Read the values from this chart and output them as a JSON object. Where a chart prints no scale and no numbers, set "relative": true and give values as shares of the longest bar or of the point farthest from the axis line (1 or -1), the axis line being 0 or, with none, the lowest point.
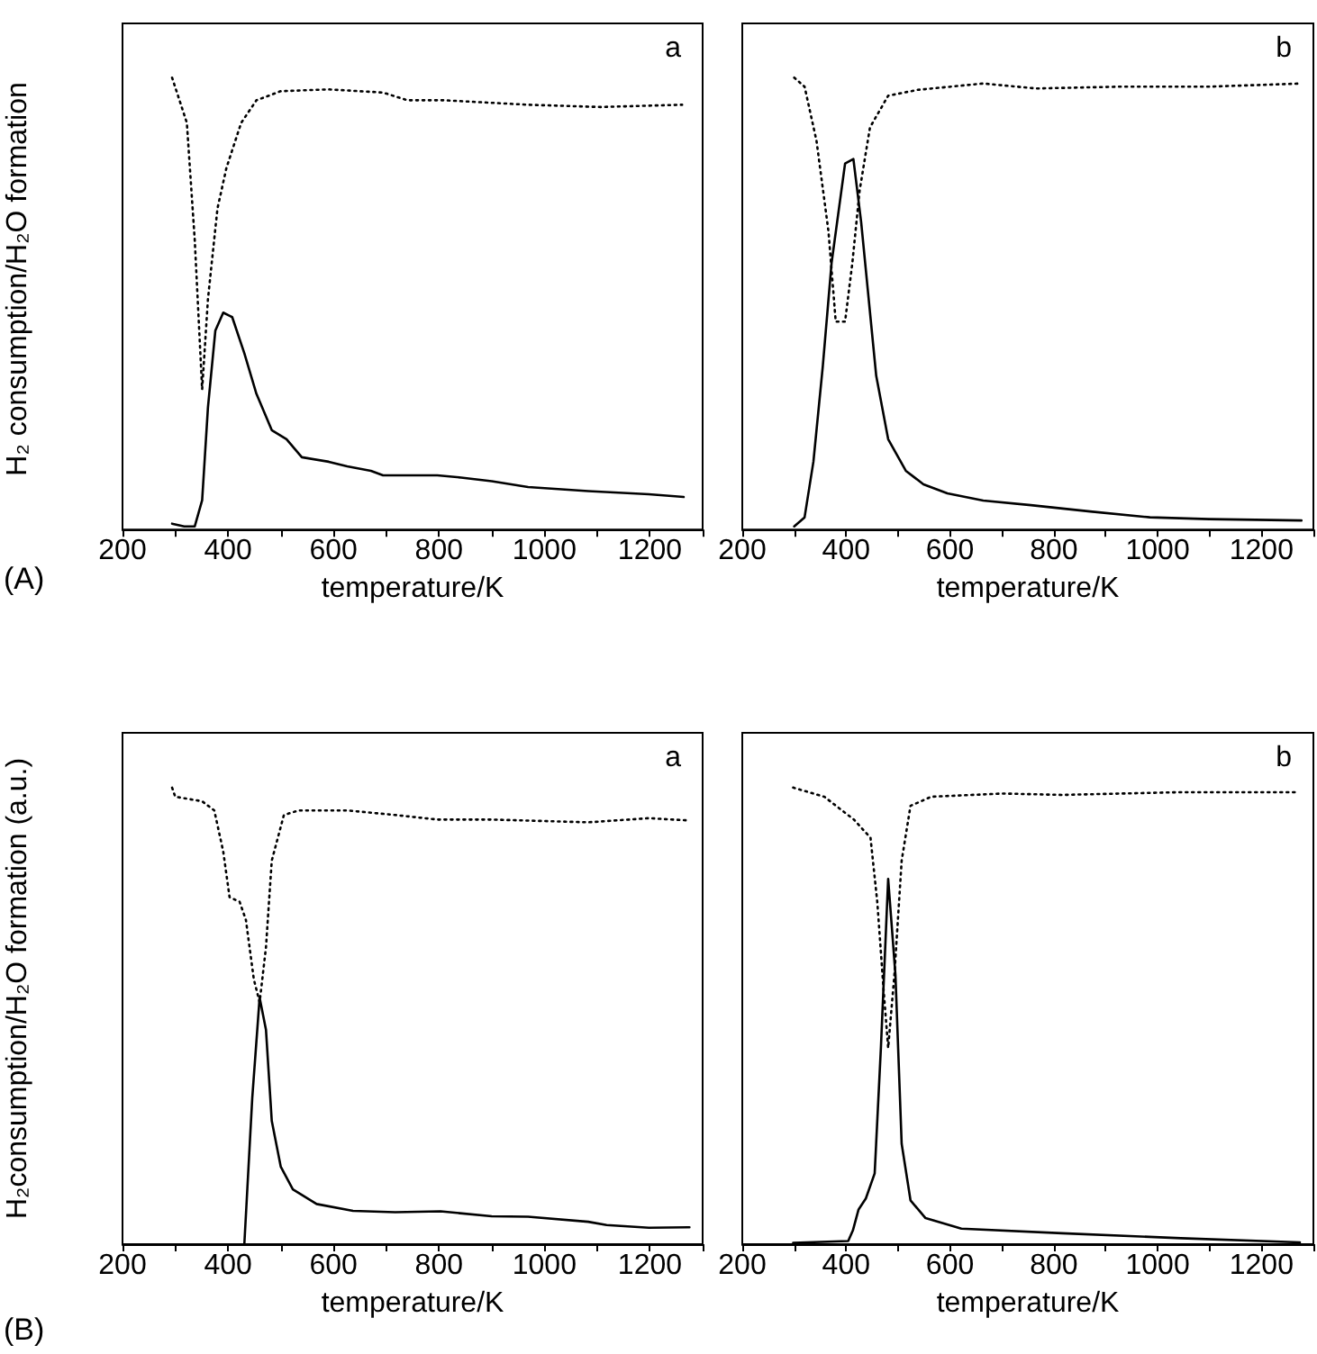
{
  "chart_data": [
    {
      "type": "line",
      "relative": true,
      "xlabel": "temperature/K",
      "ylabel": "H₂ consumption/H₂O formation",
      "annotations": [
        "a",
        "(A)"
      ],
      "tick_labels": "x",
      "xlim": [
        200,
        1300
      ],
      "xticks": [
        200,
        {
          "value": 300,
          "label": null
        },
        400,
        {
          "value": 500,
          "label": null
        },
        600,
        {
          "value": 700,
          "label": null
        },
        800,
        {
          "value": 900,
          "label": null
        },
        1000,
        {
          "value": 1100,
          "label": null
        },
        1200,
        {
          "value": 1300,
          "label": null
        }
      ],
      "series": [
        {
          "color": "#000000",
          "line_style": "dotted",
          "x": [
            294,
            322,
            337,
            351,
            362,
            380,
            397,
            425,
            454,
            500,
            591,
            694,
            740,
            809,
            969,
            1106,
            1261
          ],
          "values": [
            1.0,
            0.9,
            0.64,
            0.31,
            0.51,
            0.71,
            0.8,
            0.9,
            0.95,
            0.97,
            0.974,
            0.967,
            0.95,
            0.95,
            0.94,
            0.935,
            0.94
          ]
        },
        {
          "color": "#000000",
          "line_style": "solid",
          "x": [
            294,
            317,
            337,
            351,
            362,
            376,
            391,
            408,
            431,
            454,
            483,
            511,
            540,
            591,
            626,
            671,
            694,
            797,
            842,
            900,
            969,
            1083,
            1198,
            1264
          ],
          "values": [
            0.013,
            0.007,
            0.007,
            0.065,
            0.27,
            0.44,
            0.48,
            0.47,
            0.39,
            0.3,
            0.22,
            0.2,
            0.16,
            0.15,
            0.14,
            0.13,
            0.12,
            0.12,
            0.115,
            0.107,
            0.094,
            0.085,
            0.078,
            0.072
          ]
        }
      ]
    },
    {
      "type": "line",
      "relative": true,
      "xlabel": "temperature/K",
      "annotations": [
        "b"
      ],
      "tick_labels": "x",
      "xlim": [
        200,
        1300
      ],
      "xticks": [
        200,
        {
          "value": 300,
          "label": null
        },
        400,
        {
          "value": 500,
          "label": null
        },
        600,
        {
          "value": 700,
          "label": null
        },
        800,
        {
          "value": 900,
          "label": null
        },
        1000,
        {
          "value": 1100,
          "label": null
        },
        1200,
        {
          "value": 1300,
          "label": null
        }
      ],
      "series": [
        {
          "color": "#000000",
          "line_style": "dotted",
          "x": [
            300,
            320,
            343,
            366,
            380,
            398,
            412,
            426,
            446,
            481,
            538,
            664,
            766,
            927,
            1099,
            1277
          ],
          "values": [
            1.0,
            0.98,
            0.86,
            0.66,
            0.46,
            0.46,
            0.59,
            0.75,
            0.89,
            0.96,
            0.973,
            0.987,
            0.976,
            0.98,
            0.98,
            0.987
          ]
        },
        {
          "color": "#000000",
          "line_style": "solid",
          "x": [
            300,
            320,
            337,
            355,
            372,
            398,
            414,
            429,
            458,
            481,
            515,
            549,
            595,
            664,
            756,
            870,
            985,
            1099,
            1277
          ],
          "values": [
            0.007,
            0.027,
            0.15,
            0.36,
            0.59,
            0.81,
            0.82,
            0.68,
            0.34,
            0.2,
            0.13,
            0.1,
            0.08,
            0.064,
            0.054,
            0.04,
            0.027,
            0.023,
            0.02
          ]
        }
      ]
    },
    {
      "type": "line",
      "relative": true,
      "xlabel": "temperature/K",
      "ylabel": "H₂consumption/H₂O formation (a.u.)",
      "annotations": [
        "a",
        "(B)"
      ],
      "tick_labels": "x",
      "xlim": [
        200,
        1300
      ],
      "xticks": [
        200,
        {
          "value": 300,
          "label": null
        },
        400,
        {
          "value": 500,
          "label": null
        },
        600,
        {
          "value": 700,
          "label": null
        },
        800,
        {
          "value": 900,
          "label": null
        },
        1000,
        {
          "value": 1100,
          "label": null
        },
        1200,
        {
          "value": 1300,
          "label": null
        }
      ],
      "series": [
        {
          "color": "#000000",
          "line_style": "dotted",
          "x": [
            294,
            300,
            351,
            374,
            391,
            403,
            422,
            434,
            449,
            460,
            472,
            483,
            506,
            534,
            626,
            717,
            797,
            900,
            1083,
            1198,
            1275
          ],
          "values": [
            1.0,
            0.98,
            0.97,
            0.95,
            0.86,
            0.76,
            0.75,
            0.71,
            0.58,
            0.53,
            0.65,
            0.84,
            0.94,
            0.95,
            0.95,
            0.94,
            0.93,
            0.93,
            0.924,
            0.933,
            0.928
          ]
        },
        {
          "color": "#000000",
          "line_style": "solid",
          "x": [
            431,
            446,
            460,
            472,
            483,
            500,
            523,
            568,
            637,
            717,
            803,
            900,
            969,
            1083,
            1118,
            1198,
            1275
          ],
          "values": [
            0,
            0.32,
            0.54,
            0.47,
            0.27,
            0.17,
            0.12,
            0.088,
            0.073,
            0.07,
            0.072,
            0.061,
            0.06,
            0.049,
            0.042,
            0.036,
            0.037
          ]
        }
      ]
    },
    {
      "type": "line",
      "relative": true,
      "xlabel": "temperature/K",
      "annotations": [
        "b"
      ],
      "tick_labels": "x",
      "xlim": [
        200,
        1300
      ],
      "xticks": [
        200,
        {
          "value": 300,
          "label": null
        },
        400,
        {
          "value": 500,
          "label": null
        },
        600,
        {
          "value": 700,
          "label": null
        },
        800,
        {
          "value": 900,
          "label": null
        },
        1000,
        {
          "value": 1100,
          "label": null
        },
        1200,
        {
          "value": 1300,
          "label": null
        }
      ],
      "series": [
        {
          "color": "#000000",
          "line_style": "dotted",
          "x": [
            298,
            358,
            415,
            447,
            460,
            472,
            481,
            493,
            507,
            524,
            564,
            702,
            816,
            1045,
            1269
          ],
          "values": [
            1.0,
            0.98,
            0.93,
            0.89,
            0.75,
            0.56,
            0.43,
            0.59,
            0.84,
            0.96,
            0.98,
            0.987,
            0.984,
            0.99,
            0.99
          ]
        },
        {
          "color": "#000000",
          "line_style": "solid",
          "x": [
            298,
            404,
            413,
            424,
            438,
            455,
            467,
            481,
            495,
            507,
            524,
            553,
            622,
            816,
            1045,
            1274
          ],
          "values": [
            0.003,
            0.007,
            0.03,
            0.076,
            0.1,
            0.155,
            0.43,
            0.8,
            0.59,
            0.22,
            0.096,
            0.057,
            0.034,
            0.024,
            0.013,
            0.004
          ]
        }
      ]
    }
  ]
}
